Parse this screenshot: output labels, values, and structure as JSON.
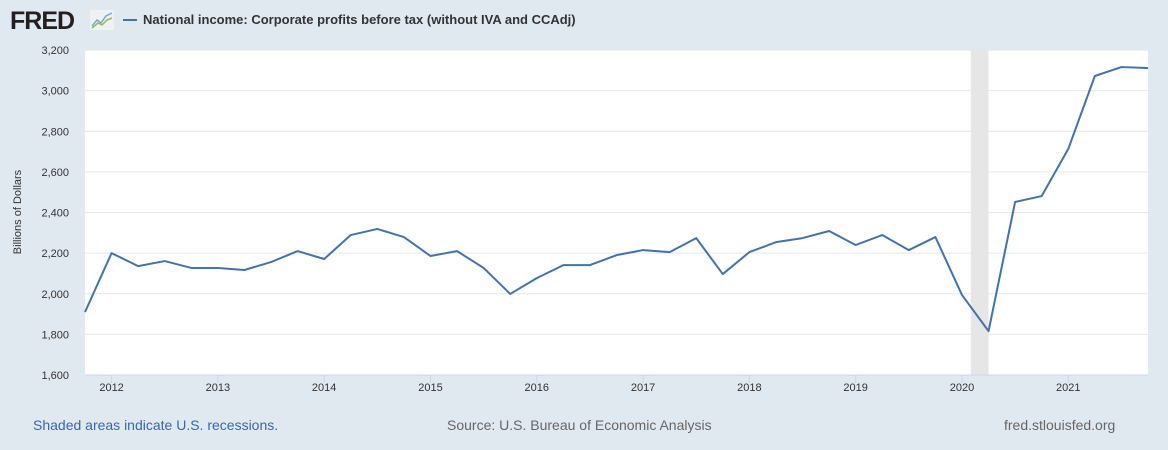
{
  "header": {
    "logo": "FRED",
    "legend_label": "National income: Corporate profits before tax (without IVA and CCAdj)"
  },
  "footer": {
    "recession_note": "Shaded areas indicate U.S. recessions.",
    "source": "Source: U.S. Bureau of Economic Analysis",
    "site": "fred.stlouisfed.org"
  },
  "chart_data": {
    "type": "line",
    "title": "",
    "ylabel": "Billions of Dollars",
    "xlabel": "",
    "ylim": [
      1600,
      3200
    ],
    "yticks": [
      "1,600",
      "1,800",
      "2,000",
      "2,200",
      "2,400",
      "2,600",
      "2,800",
      "3,000",
      "3,200"
    ],
    "xticks": [
      "2012",
      "2013",
      "2014",
      "2015",
      "2016",
      "2017",
      "2018",
      "2019",
      "2020",
      "2021"
    ],
    "grid": true,
    "line_color": "#4572a7",
    "recessions": [
      [
        "2020-02",
        "2020-04"
      ]
    ],
    "series": [
      {
        "name": "National income: Corporate profits before tax (without IVA and CCAdj)",
        "x": [
          "2011-10",
          "2012-01",
          "2012-04",
          "2012-07",
          "2012-10",
          "2013-01",
          "2013-04",
          "2013-07",
          "2013-10",
          "2014-01",
          "2014-04",
          "2014-07",
          "2014-10",
          "2015-01",
          "2015-04",
          "2015-07",
          "2015-10",
          "2016-01",
          "2016-04",
          "2016-07",
          "2016-10",
          "2017-01",
          "2017-04",
          "2017-07",
          "2017-10",
          "2018-01",
          "2018-04",
          "2018-07",
          "2018-10",
          "2019-01",
          "2019-04",
          "2019-07",
          "2019-10",
          "2020-01",
          "2020-04",
          "2020-07",
          "2020-10",
          "2021-01",
          "2021-04",
          "2021-07",
          "2021-10"
        ],
        "values": [
          1910,
          2200,
          2136,
          2161,
          2127,
          2127,
          2117,
          2156,
          2210,
          2171,
          2289,
          2319,
          2279,
          2186,
          2210,
          2127,
          1999,
          2077,
          2141,
          2141,
          2190,
          2215,
          2205,
          2274,
          2097,
          2205,
          2254,
          2274,
          2309,
          2240,
          2289,
          2215,
          2279,
          1994,
          1816,
          2452,
          2481,
          2713,
          3072,
          3116,
          3111
        ]
      }
    ]
  }
}
